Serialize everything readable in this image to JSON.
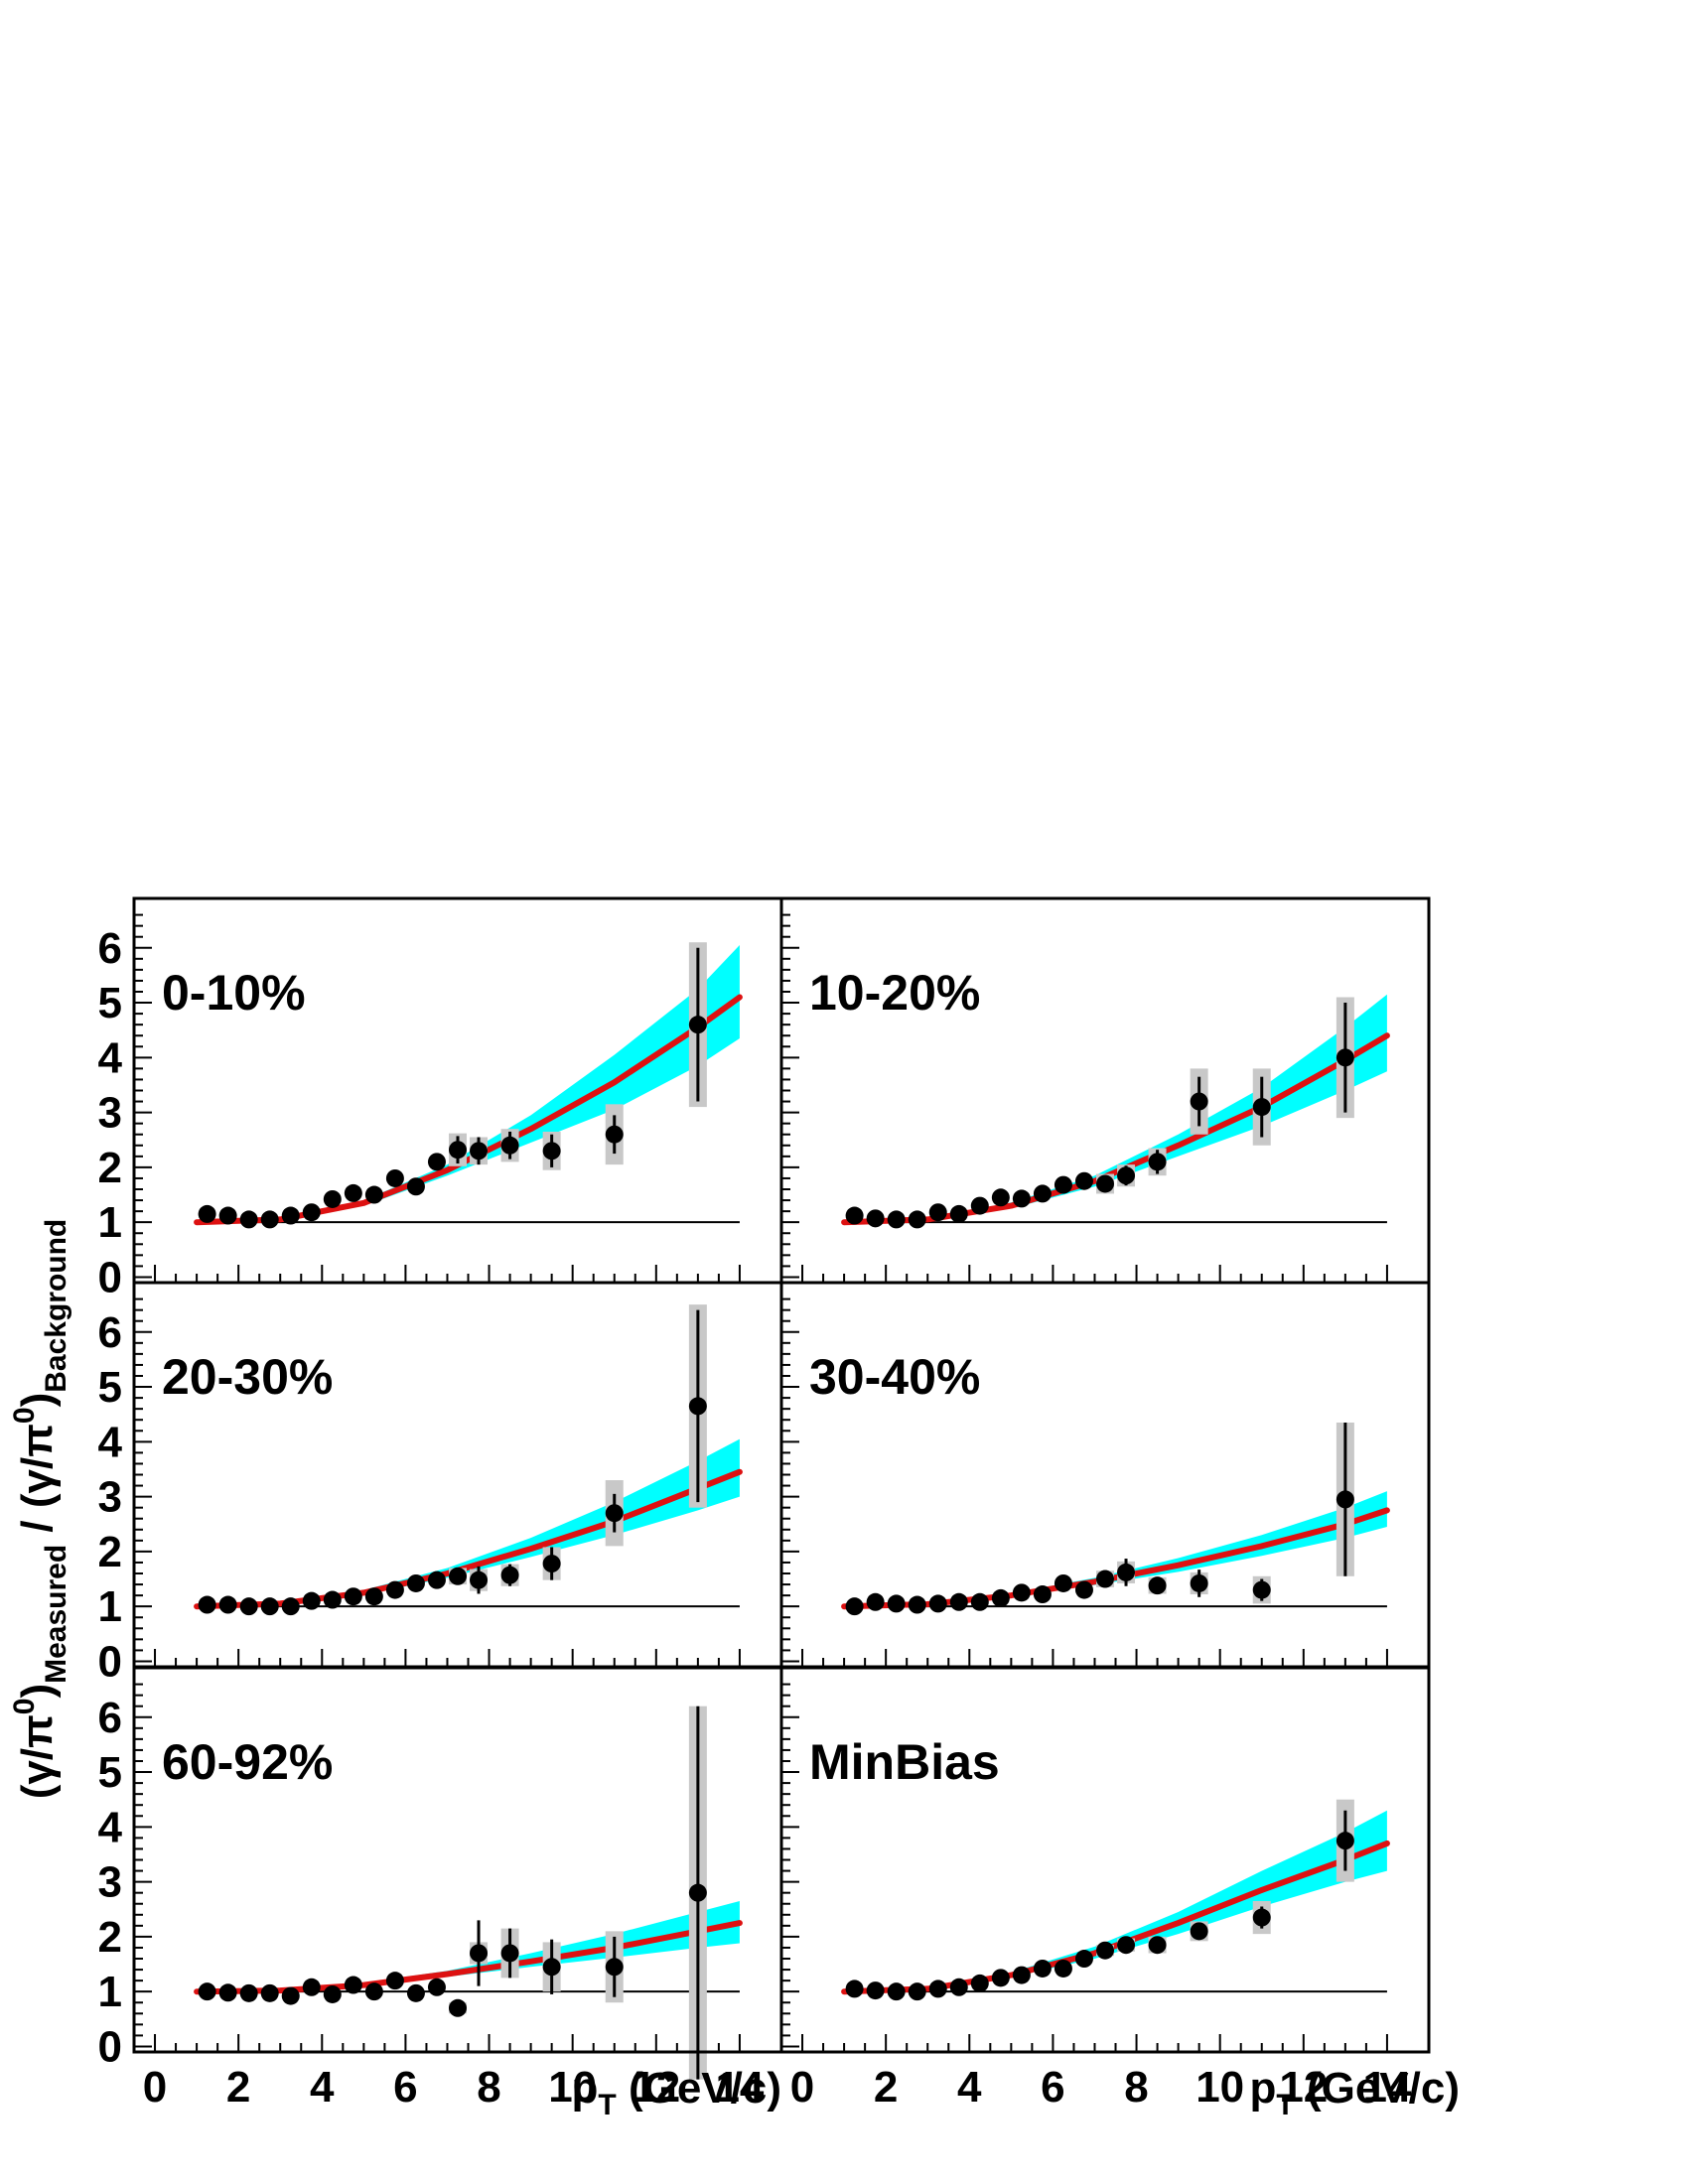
{
  "colors": {
    "band": "#00ffff",
    "curve": "#dd1111",
    "points": "#000000",
    "sys_box": "#c8c8c8",
    "reference_line": "#000000"
  },
  "x_axis": {
    "label_main": "p",
    "label_sub": "T",
    "label_units": " (GeV/c)",
    "ticks": [
      "0",
      "2",
      "4",
      "6",
      "8",
      "10",
      "12",
      "14"
    ]
  },
  "y_axis": {
    "label_parts": {
      "open": "(γ/π",
      "sup0": "0",
      "close1": ")",
      "sub1": "Measured",
      "slash": " / (γ/π",
      "sup0b": "0",
      "close2": ")",
      "sub2": "Background"
    },
    "ticks": [
      "0",
      "1",
      "2",
      "3",
      "4",
      "5",
      "6"
    ]
  },
  "chart_data": [
    {
      "type": "scatter",
      "panel_label": "0-10%",
      "xlim": [
        -0.5,
        15.0
      ],
      "ylim": [
        -0.1,
        6.9
      ],
      "reference_line": 1,
      "points": [
        {
          "x": 1.25,
          "y": 1.15
        },
        {
          "x": 1.75,
          "y": 1.12
        },
        {
          "x": 2.25,
          "y": 1.05
        },
        {
          "x": 2.75,
          "y": 1.05
        },
        {
          "x": 3.25,
          "y": 1.12
        },
        {
          "x": 3.75,
          "y": 1.18
        },
        {
          "x": 4.25,
          "y": 1.42
        },
        {
          "x": 4.75,
          "y": 1.53
        },
        {
          "x": 5.25,
          "y": 1.5
        },
        {
          "x": 5.75,
          "y": 1.8
        },
        {
          "x": 6.25,
          "y": 1.65
        },
        {
          "x": 6.75,
          "y": 2.1
        },
        {
          "x": 7.25,
          "y": 2.32,
          "err": 0.25,
          "sys": 0.3
        },
        {
          "x": 7.75,
          "y": 2.3,
          "err": 0.25,
          "sys": 0.25
        },
        {
          "x": 8.5,
          "y": 2.4,
          "err": 0.25,
          "sys": 0.3
        },
        {
          "x": 9.5,
          "y": 2.3,
          "err": 0.3,
          "sys": 0.35
        },
        {
          "x": 11.0,
          "y": 2.6,
          "err": 0.35,
          "sys": 0.55
        },
        {
          "x": 13.0,
          "y": 4.6,
          "err": 1.4,
          "sys": 1.5
        }
      ],
      "curve": [
        [
          1.0,
          1.0
        ],
        [
          3.0,
          1.05
        ],
        [
          5.0,
          1.35
        ],
        [
          7.0,
          1.95
        ],
        [
          9.0,
          2.7
        ],
        [
          11.0,
          3.55
        ],
        [
          13.0,
          4.55
        ],
        [
          14.0,
          5.1
        ]
      ],
      "band_lower": [
        [
          1.0,
          1.0
        ],
        [
          3.0,
          1.04
        ],
        [
          5.0,
          1.3
        ],
        [
          7.0,
          1.85
        ],
        [
          9.0,
          2.45
        ],
        [
          11.0,
          3.05
        ],
        [
          13.0,
          3.85
        ],
        [
          14.0,
          4.35
        ]
      ],
      "band_upper": [
        [
          1.0,
          1.0
        ],
        [
          3.0,
          1.06
        ],
        [
          5.0,
          1.4
        ],
        [
          7.0,
          2.05
        ],
        [
          9.0,
          2.95
        ],
        [
          11.0,
          4.05
        ],
        [
          13.0,
          5.25
        ],
        [
          14.0,
          6.05
        ]
      ]
    },
    {
      "type": "scatter",
      "panel_label": "10-20%",
      "xlim": [
        -0.5,
        15.0
      ],
      "ylim": [
        -0.1,
        6.9
      ],
      "reference_line": 1,
      "points": [
        {
          "x": 1.25,
          "y": 1.12
        },
        {
          "x": 1.75,
          "y": 1.07
        },
        {
          "x": 2.25,
          "y": 1.05
        },
        {
          "x": 2.75,
          "y": 1.05
        },
        {
          "x": 3.25,
          "y": 1.18
        },
        {
          "x": 3.75,
          "y": 1.15
        },
        {
          "x": 4.25,
          "y": 1.3
        },
        {
          "x": 4.75,
          "y": 1.45
        },
        {
          "x": 5.25,
          "y": 1.43
        },
        {
          "x": 5.75,
          "y": 1.52
        },
        {
          "x": 6.25,
          "y": 1.68
        },
        {
          "x": 6.75,
          "y": 1.75
        },
        {
          "x": 7.25,
          "y": 1.7,
          "err": 0.15,
          "sys": 0.18
        },
        {
          "x": 7.75,
          "y": 1.85,
          "err": 0.18,
          "sys": 0.2
        },
        {
          "x": 8.5,
          "y": 2.1,
          "err": 0.22,
          "sys": 0.25
        },
        {
          "x": 9.5,
          "y": 3.2,
          "err": 0.45,
          "sys": 0.6
        },
        {
          "x": 11.0,
          "y": 3.1,
          "err": 0.55,
          "sys": 0.7
        },
        {
          "x": 13.0,
          "y": 4.0,
          "err": 1.0,
          "sys": 1.1
        }
      ],
      "curve": [
        [
          1.0,
          1.0
        ],
        [
          3.0,
          1.05
        ],
        [
          5.0,
          1.3
        ],
        [
          7.0,
          1.75
        ],
        [
          9.0,
          2.4
        ],
        [
          11.0,
          3.1
        ],
        [
          13.0,
          3.95
        ],
        [
          14.0,
          4.4
        ]
      ],
      "band_lower": [
        [
          1.0,
          1.0
        ],
        [
          3.0,
          1.04
        ],
        [
          5.0,
          1.25
        ],
        [
          7.0,
          1.65
        ],
        [
          9.0,
          2.2
        ],
        [
          11.0,
          2.75
        ],
        [
          13.0,
          3.4
        ],
        [
          14.0,
          3.75
        ]
      ],
      "band_upper": [
        [
          1.0,
          1.0
        ],
        [
          3.0,
          1.06
        ],
        [
          5.0,
          1.36
        ],
        [
          7.0,
          1.85
        ],
        [
          9.0,
          2.6
        ],
        [
          11.0,
          3.45
        ],
        [
          13.0,
          4.55
        ],
        [
          14.0,
          5.15
        ]
      ]
    },
    {
      "type": "scatter",
      "panel_label": "20-30%",
      "xlim": [
        -0.5,
        15.0
      ],
      "ylim": [
        -0.1,
        6.9
      ],
      "reference_line": 1,
      "points": [
        {
          "x": 1.25,
          "y": 1.03
        },
        {
          "x": 1.75,
          "y": 1.03
        },
        {
          "x": 2.25,
          "y": 1.0
        },
        {
          "x": 2.75,
          "y": 1.0
        },
        {
          "x": 3.25,
          "y": 1.0
        },
        {
          "x": 3.75,
          "y": 1.1
        },
        {
          "x": 4.25,
          "y": 1.12
        },
        {
          "x": 4.75,
          "y": 1.18
        },
        {
          "x": 5.25,
          "y": 1.18
        },
        {
          "x": 5.75,
          "y": 1.3
        },
        {
          "x": 6.25,
          "y": 1.42
        },
        {
          "x": 6.75,
          "y": 1.48
        },
        {
          "x": 7.25,
          "y": 1.55,
          "err": 0.12,
          "sys": 0.15
        },
        {
          "x": 7.75,
          "y": 1.48,
          "err": 0.25,
          "sys": 0.2
        },
        {
          "x": 8.5,
          "y": 1.57,
          "err": 0.2,
          "sys": 0.2
        },
        {
          "x": 9.5,
          "y": 1.78,
          "err": 0.3,
          "sys": 0.3
        },
        {
          "x": 11.0,
          "y": 2.7,
          "err": 0.35,
          "sys": 0.6
        },
        {
          "x": 13.0,
          "y": 4.65,
          "err": 1.75,
          "sys": 1.85
        }
      ],
      "curve": [
        [
          1.0,
          1.0
        ],
        [
          3.0,
          1.05
        ],
        [
          5.0,
          1.25
        ],
        [
          7.0,
          1.6
        ],
        [
          9.0,
          2.05
        ],
        [
          11.0,
          2.55
        ],
        [
          13.0,
          3.15
        ],
        [
          14.0,
          3.45
        ]
      ],
      "band_lower": [
        [
          1.0,
          1.0
        ],
        [
          3.0,
          1.04
        ],
        [
          5.0,
          1.21
        ],
        [
          7.0,
          1.52
        ],
        [
          9.0,
          1.9
        ],
        [
          11.0,
          2.3
        ],
        [
          13.0,
          2.75
        ],
        [
          14.0,
          3.0
        ]
      ],
      "band_upper": [
        [
          1.0,
          1.0
        ],
        [
          3.0,
          1.06
        ],
        [
          5.0,
          1.3
        ],
        [
          7.0,
          1.7
        ],
        [
          9.0,
          2.25
        ],
        [
          11.0,
          2.9
        ],
        [
          13.0,
          3.65
        ],
        [
          14.0,
          4.05
        ]
      ]
    },
    {
      "type": "scatter",
      "panel_label": "30-40%",
      "xlim": [
        -0.5,
        15.0
      ],
      "ylim": [
        -0.1,
        6.9
      ],
      "reference_line": 1,
      "points": [
        {
          "x": 1.25,
          "y": 1.0
        },
        {
          "x": 1.75,
          "y": 1.08
        },
        {
          "x": 2.25,
          "y": 1.05
        },
        {
          "x": 2.75,
          "y": 1.03
        },
        {
          "x": 3.25,
          "y": 1.05
        },
        {
          "x": 3.75,
          "y": 1.08
        },
        {
          "x": 4.25,
          "y": 1.08
        },
        {
          "x": 4.75,
          "y": 1.15
        },
        {
          "x": 5.25,
          "y": 1.25
        },
        {
          "x": 5.75,
          "y": 1.22
        },
        {
          "x": 6.25,
          "y": 1.42
        },
        {
          "x": 6.75,
          "y": 1.3
        },
        {
          "x": 7.25,
          "y": 1.5,
          "err": 0.15,
          "sys": 0.15
        },
        {
          "x": 7.75,
          "y": 1.62,
          "err": 0.25,
          "sys": 0.2
        },
        {
          "x": 8.5,
          "y": 1.38,
          "err": 0.15,
          "sys": 0.15
        },
        {
          "x": 9.5,
          "y": 1.42,
          "err": 0.25,
          "sys": 0.2
        },
        {
          "x": 11.0,
          "y": 1.3,
          "err": 0.2,
          "sys": 0.25
        },
        {
          "x": 13.0,
          "y": 2.95,
          "err": 1.4,
          "sys": 1.4
        }
      ],
      "curve": [
        [
          1.0,
          1.0
        ],
        [
          3.0,
          1.04
        ],
        [
          5.0,
          1.2
        ],
        [
          7.0,
          1.45
        ],
        [
          9.0,
          1.75
        ],
        [
          11.0,
          2.1
        ],
        [
          13.0,
          2.5
        ],
        [
          14.0,
          2.75
        ]
      ],
      "band_lower": [
        [
          1.0,
          1.0
        ],
        [
          3.0,
          1.03
        ],
        [
          5.0,
          1.17
        ],
        [
          7.0,
          1.39
        ],
        [
          9.0,
          1.63
        ],
        [
          11.0,
          1.92
        ],
        [
          13.0,
          2.25
        ],
        [
          14.0,
          2.45
        ]
      ],
      "band_upper": [
        [
          1.0,
          1.0
        ],
        [
          3.0,
          1.05
        ],
        [
          5.0,
          1.24
        ],
        [
          7.0,
          1.52
        ],
        [
          9.0,
          1.88
        ],
        [
          11.0,
          2.3
        ],
        [
          13.0,
          2.8
        ],
        [
          14.0,
          3.1
        ]
      ]
    },
    {
      "type": "scatter",
      "panel_label": "60-92%",
      "xlim": [
        -0.5,
        15.0
      ],
      "ylim": [
        -0.1,
        6.9
      ],
      "reference_line": 1,
      "points": [
        {
          "x": 1.25,
          "y": 1.0
        },
        {
          "x": 1.75,
          "y": 0.98
        },
        {
          "x": 2.25,
          "y": 0.97
        },
        {
          "x": 2.75,
          "y": 0.97
        },
        {
          "x": 3.25,
          "y": 0.92
        },
        {
          "x": 3.75,
          "y": 1.08
        },
        {
          "x": 4.25,
          "y": 0.95
        },
        {
          "x": 4.75,
          "y": 1.12
        },
        {
          "x": 5.25,
          "y": 1.0
        },
        {
          "x": 5.75,
          "y": 1.2
        },
        {
          "x": 6.25,
          "y": 0.97
        },
        {
          "x": 6.75,
          "y": 1.08
        },
        {
          "x": 7.25,
          "y": 0.7,
          "err": 0.1,
          "sys": 0.1
        },
        {
          "x": 7.75,
          "y": 1.7,
          "err": 0.6,
          "sys": 0.2
        },
        {
          "x": 8.5,
          "y": 1.7,
          "err": 0.45,
          "sys": 0.45
        },
        {
          "x": 9.5,
          "y": 1.45,
          "err": 0.5,
          "sys": 0.45
        },
        {
          "x": 11.0,
          "y": 1.45,
          "err": 0.55,
          "sys": 0.65
        },
        {
          "x": 13.0,
          "y": 2.8,
          "err": 3.4,
          "sys": 3.4
        }
      ],
      "curve": [
        [
          1.0,
          1.0
        ],
        [
          3.0,
          1.02
        ],
        [
          5.0,
          1.12
        ],
        [
          7.0,
          1.32
        ],
        [
          9.0,
          1.55
        ],
        [
          11.0,
          1.8
        ],
        [
          13.0,
          2.1
        ],
        [
          14.0,
          2.25
        ]
      ],
      "band_lower": [
        [
          1.0,
          1.0
        ],
        [
          3.0,
          1.01
        ],
        [
          5.0,
          1.09
        ],
        [
          7.0,
          1.27
        ],
        [
          9.0,
          1.45
        ],
        [
          11.0,
          1.62
        ],
        [
          13.0,
          1.8
        ],
        [
          14.0,
          1.88
        ]
      ],
      "band_upper": [
        [
          1.0,
          1.0
        ],
        [
          3.0,
          1.03
        ],
        [
          5.0,
          1.16
        ],
        [
          7.0,
          1.38
        ],
        [
          9.0,
          1.7
        ],
        [
          11.0,
          2.05
        ],
        [
          13.0,
          2.45
        ],
        [
          14.0,
          2.65
        ]
      ]
    },
    {
      "type": "scatter",
      "panel_label": "MinBias",
      "xlim": [
        -0.5,
        15.0
      ],
      "ylim": [
        -0.1,
        6.9
      ],
      "reference_line": 1,
      "points": [
        {
          "x": 1.25,
          "y": 1.05
        },
        {
          "x": 1.75,
          "y": 1.02
        },
        {
          "x": 2.25,
          "y": 1.0
        },
        {
          "x": 2.75,
          "y": 1.0
        },
        {
          "x": 3.25,
          "y": 1.05
        },
        {
          "x": 3.75,
          "y": 1.08
        },
        {
          "x": 4.25,
          "y": 1.15
        },
        {
          "x": 4.75,
          "y": 1.25
        },
        {
          "x": 5.25,
          "y": 1.3
        },
        {
          "x": 5.75,
          "y": 1.42
        },
        {
          "x": 6.25,
          "y": 1.42
        },
        {
          "x": 6.75,
          "y": 1.6
        },
        {
          "x": 7.25,
          "y": 1.75,
          "err": 0.08,
          "sys": 0.1
        },
        {
          "x": 7.75,
          "y": 1.85,
          "err": 0.1,
          "sys": 0.12
        },
        {
          "x": 8.5,
          "y": 1.85,
          "err": 0.12,
          "sys": 0.15
        },
        {
          "x": 9.5,
          "y": 2.1,
          "err": 0.15,
          "sys": 0.18
        },
        {
          "x": 11.0,
          "y": 2.35,
          "err": 0.2,
          "sys": 0.3
        },
        {
          "x": 13.0,
          "y": 3.75,
          "err": 0.55,
          "sys": 0.75
        }
      ],
      "curve": [
        [
          1.0,
          1.0
        ],
        [
          3.0,
          1.05
        ],
        [
          5.0,
          1.3
        ],
        [
          7.0,
          1.7
        ],
        [
          9.0,
          2.25
        ],
        [
          11.0,
          2.85
        ],
        [
          13.0,
          3.4
        ],
        [
          14.0,
          3.7
        ]
      ],
      "band_lower": [
        [
          1.0,
          1.0
        ],
        [
          3.0,
          1.04
        ],
        [
          5.0,
          1.26
        ],
        [
          7.0,
          1.6
        ],
        [
          9.0,
          2.05
        ],
        [
          11.0,
          2.55
        ],
        [
          13.0,
          3.0
        ],
        [
          14.0,
          3.2
        ]
      ],
      "band_upper": [
        [
          1.0,
          1.0
        ],
        [
          3.0,
          1.06
        ],
        [
          5.0,
          1.35
        ],
        [
          7.0,
          1.82
        ],
        [
          9.0,
          2.45
        ],
        [
          11.0,
          3.2
        ],
        [
          13.0,
          3.9
        ],
        [
          14.0,
          4.3
        ]
      ]
    }
  ]
}
